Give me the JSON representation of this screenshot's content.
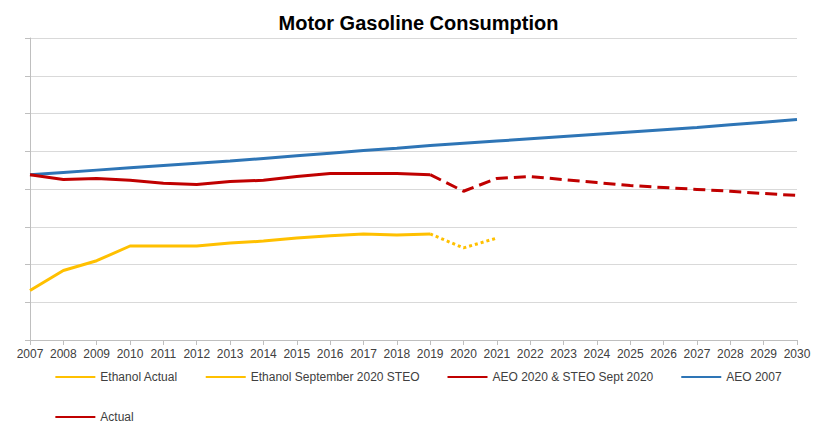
{
  "chart_data": {
    "type": "line",
    "title": "Motor Gasoline Consumption",
    "categories": [
      "2007",
      "2008",
      "2009",
      "2010",
      "2011",
      "2012",
      "2013",
      "2014",
      "2015",
      "2016",
      "2017",
      "2018",
      "2019",
      "2020",
      "2021",
      "2022",
      "2023",
      "2024",
      "2025",
      "2026",
      "2027",
      "2028",
      "2029",
      "2030"
    ],
    "series": [
      {
        "name": "Ethanol Actual",
        "color": "#ffc000",
        "line_style": "solid",
        "values": [
          1.31,
          1.84,
          2.1,
          2.49,
          2.49,
          2.49,
          2.57,
          2.62,
          2.7,
          2.76,
          2.81,
          2.78,
          2.81,
          null,
          null,
          null,
          null,
          null,
          null,
          null,
          null,
          null,
          null,
          null
        ]
      },
      {
        "name": "Ethanol September 2020 STEO",
        "color": "#ffc000",
        "line_style": "dotted",
        "values": [
          null,
          null,
          null,
          null,
          null,
          null,
          null,
          null,
          null,
          null,
          null,
          null,
          2.81,
          2.44,
          2.7,
          null,
          null,
          null,
          null,
          null,
          null,
          null,
          null,
          null
        ]
      },
      {
        "name": "AEO 2020 & STEO Sept 2020",
        "color": "#c00000",
        "line_style": "dashed",
        "values": [
          null,
          null,
          null,
          null,
          null,
          null,
          null,
          null,
          null,
          null,
          null,
          null,
          4.38,
          3.94,
          4.28,
          4.33,
          4.25,
          4.17,
          4.09,
          4.04,
          3.99,
          3.94,
          3.88,
          3.83
        ]
      },
      {
        "name": "AEO 2007",
        "color": "#2e75b6",
        "line_style": "solid",
        "values": [
          4.38,
          4.44,
          4.5,
          4.56,
          4.62,
          4.68,
          4.74,
          4.81,
          4.88,
          4.95,
          5.02,
          5.08,
          5.15,
          5.21,
          5.27,
          5.33,
          5.39,
          5.45,
          5.51,
          5.57,
          5.63,
          5.7,
          5.77,
          5.84
        ]
      },
      {
        "name": "Actual",
        "color": "#c00000",
        "line_style": "solid",
        "values": [
          4.38,
          4.25,
          4.28,
          4.23,
          4.15,
          4.12,
          4.2,
          4.23,
          4.33,
          4.41,
          4.41,
          4.41,
          4.38,
          null,
          null,
          null,
          null,
          null,
          null,
          null,
          null,
          null,
          null,
          null
        ]
      }
    ],
    "ylim": [
      0,
      8
    ],
    "yticks": [
      0,
      1,
      2,
      3,
      4,
      5,
      6,
      7,
      8
    ],
    "grid": true,
    "legend": "bottom",
    "tick_labels": "x",
    "marker": "none"
  }
}
